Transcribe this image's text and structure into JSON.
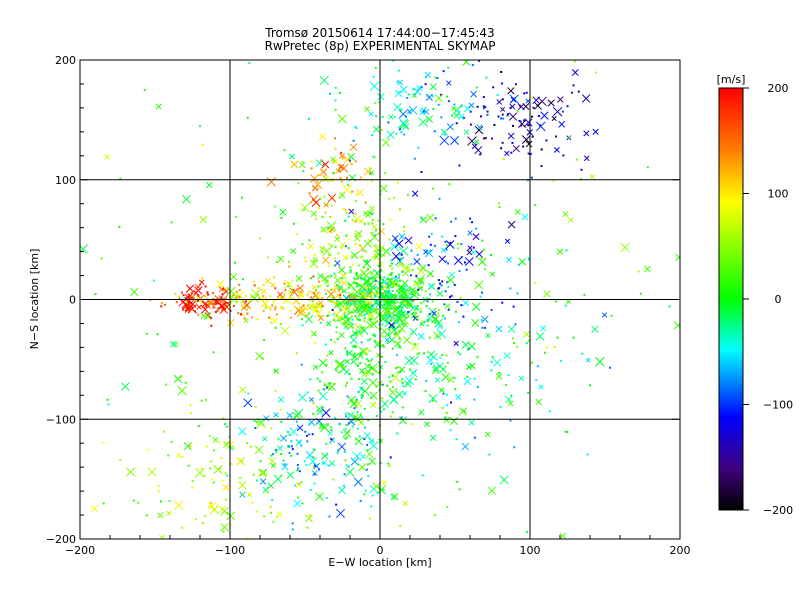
{
  "chart_data": {
    "type": "scatter",
    "title": "Tromsø 20150614 17:44:00−17:45:43",
    "subtitle": "RwPretec (8p) EXPERIMENTAL SKYMAP",
    "xlabel": "E−W location [km]",
    "ylabel": "N−S location [km]",
    "xlim": [
      -200,
      200
    ],
    "ylim": [
      -200,
      200
    ],
    "xticks": [
      "−200",
      "−100",
      "0",
      "100",
      "200"
    ],
    "yticks": [
      "−200",
      "−100",
      "0",
      "100",
      "200"
    ],
    "grid": true,
    "grid_x": [
      -100,
      0,
      100
    ],
    "grid_y": [
      -100,
      0,
      100
    ],
    "colorbar": {
      "label": "[m/s]",
      "min": -200,
      "max": 200,
      "ticks": [
        "200",
        "100",
        "0",
        "−100",
        "−200"
      ],
      "colors": [
        "#ff0000",
        "#ff8000",
        "#ffff00",
        "#00ff00",
        "#00ffff",
        "#0000ff",
        "#400080",
        "#000000"
      ]
    },
    "markers": [
      "x",
      "point"
    ],
    "clusters": [
      {
        "x": 0,
        "y": 0,
        "sx": 18,
        "sy": 14,
        "n": 420,
        "v": 0
      },
      {
        "x": -60,
        "y": 0,
        "sx": 30,
        "sy": 8,
        "n": 180,
        "v": 110
      },
      {
        "x": -115,
        "y": -3,
        "sx": 14,
        "sy": 8,
        "n": 80,
        "v": 190
      },
      {
        "x": 90,
        "y": 145,
        "sx": 25,
        "sy": 18,
        "n": 110,
        "v": -140
      },
      {
        "x": 30,
        "y": 165,
        "sx": 25,
        "sy": 20,
        "n": 110,
        "v": -40
      },
      {
        "x": -30,
        "y": 105,
        "sx": 12,
        "sy": 15,
        "n": 50,
        "v": 130
      },
      {
        "x": -10,
        "y": -50,
        "sx": 20,
        "sy": 35,
        "n": 230,
        "v": 10
      },
      {
        "x": -40,
        "y": -130,
        "sx": 25,
        "sy": 25,
        "n": 170,
        "v": -50
      },
      {
        "x": -110,
        "y": -150,
        "sx": 30,
        "sy": 30,
        "n": 110,
        "v": 60
      },
      {
        "x": 40,
        "y": 30,
        "sx": 25,
        "sy": 25,
        "n": 110,
        "v": -90
      },
      {
        "x": -20,
        "y": 50,
        "sx": 20,
        "sy": 30,
        "n": 150,
        "v": 50
      },
      {
        "x": 60,
        "y": -60,
        "sx": 30,
        "sy": 40,
        "n": 110,
        "v": -30
      },
      {
        "x": 0,
        "y": 0,
        "sx": 90,
        "sy": 90,
        "n": 260,
        "v": 20
      }
    ]
  }
}
